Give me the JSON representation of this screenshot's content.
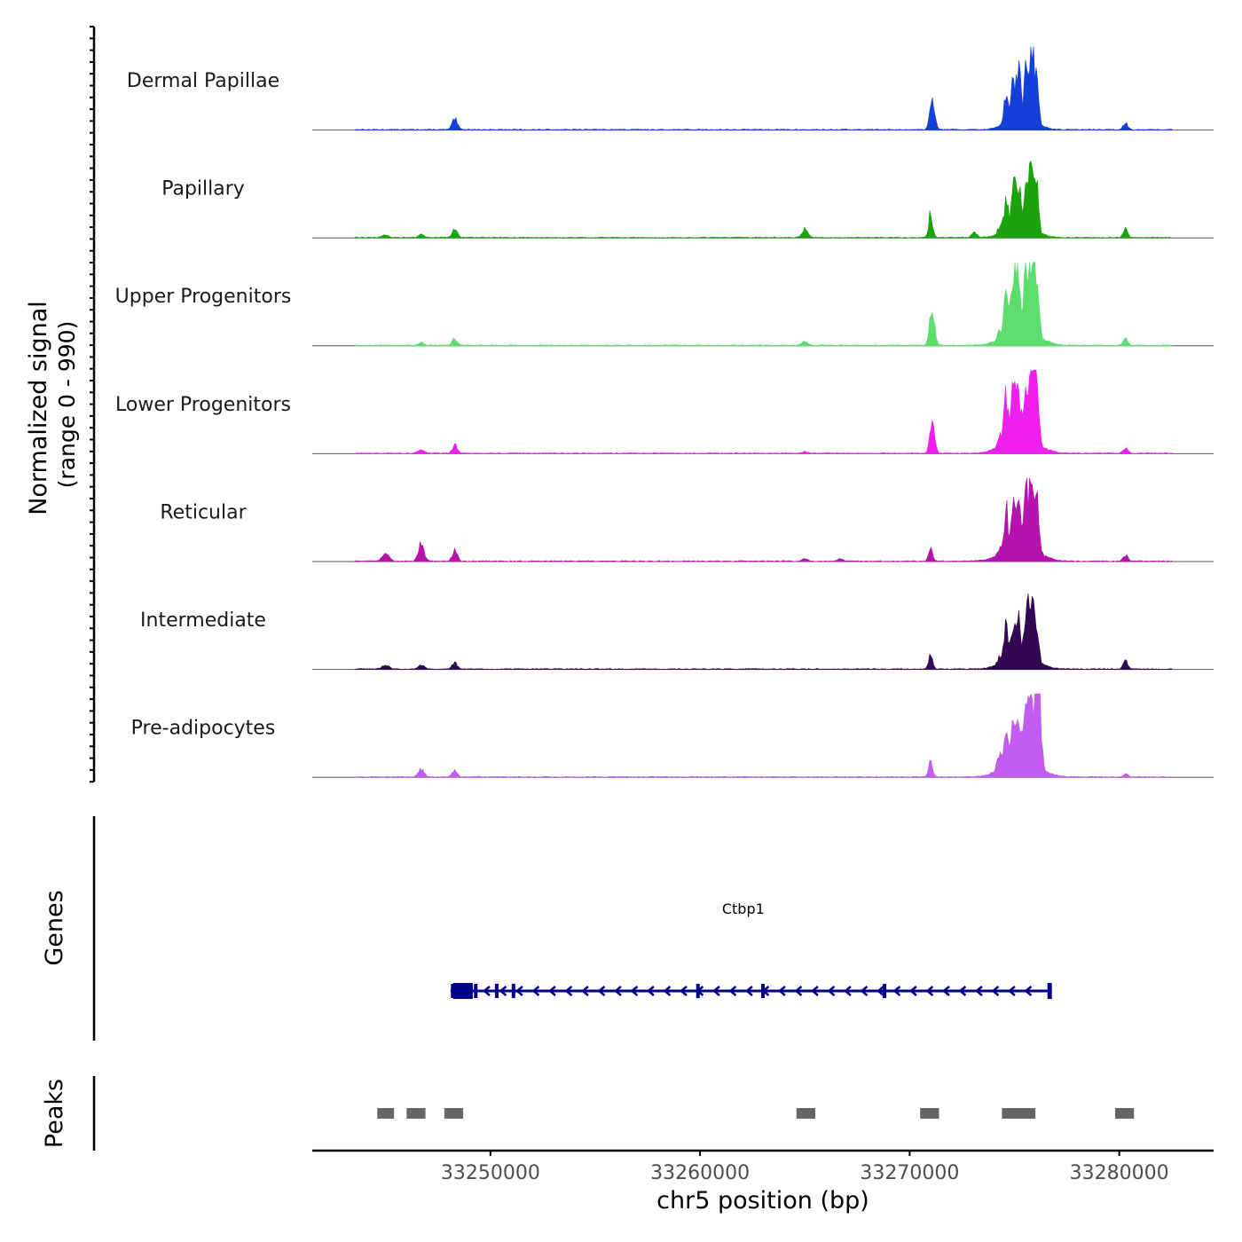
{
  "chart_data": {
    "type": "area",
    "genome": "chr5",
    "xlabel": "chr5 position (bp)",
    "x_range": [
      33241500,
      33284500
    ],
    "x_ticks": [
      33250000,
      33260000,
      33270000,
      33280000
    ],
    "x_tick_labels": [
      "33250000",
      "33260000",
      "33270000",
      "33280000"
    ],
    "signal_axis_label": "Normalized signal",
    "signal_axis_sublabel": "(range 0 - 990)",
    "signal_range": [
      0,
      990
    ],
    "tracks": [
      {
        "name": "Dermal Papillae",
        "color": "#1240d8",
        "peaks": [
          {
            "pos": 33248300,
            "h": 0.15,
            "w": 120
          },
          {
            "pos": 33271000,
            "h": 0.33,
            "w": 90
          },
          {
            "pos": 33271150,
            "h": 0.28,
            "w": 90
          },
          {
            "pos": 33274600,
            "h": 0.45,
            "w": 90
          },
          {
            "pos": 33274950,
            "h": 0.55,
            "w": 90
          },
          {
            "pos": 33275200,
            "h": 0.62,
            "w": 90
          },
          {
            "pos": 33275550,
            "h": 0.58,
            "w": 90
          },
          {
            "pos": 33275800,
            "h": 0.98,
            "w": 110
          },
          {
            "pos": 33276050,
            "h": 0.6,
            "w": 100
          },
          {
            "pos": 33275300,
            "h": 0.2,
            "w": 600
          },
          {
            "pos": 33280300,
            "h": 0.1,
            "w": 100
          }
        ]
      },
      {
        "name": "Papillary",
        "color": "#1aa30d",
        "peaks": [
          {
            "pos": 33245000,
            "h": 0.03,
            "w": 150
          },
          {
            "pos": 33246700,
            "h": 0.04,
            "w": 120
          },
          {
            "pos": 33248300,
            "h": 0.12,
            "w": 110
          },
          {
            "pos": 33265000,
            "h": 0.12,
            "w": 130
          },
          {
            "pos": 33271000,
            "h": 0.35,
            "w": 90
          },
          {
            "pos": 33273100,
            "h": 0.07,
            "w": 120
          },
          {
            "pos": 33274300,
            "h": 0.1,
            "w": 120
          },
          {
            "pos": 33274600,
            "h": 0.45,
            "w": 90
          },
          {
            "pos": 33274950,
            "h": 0.55,
            "w": 90
          },
          {
            "pos": 33275200,
            "h": 0.62,
            "w": 90
          },
          {
            "pos": 33275550,
            "h": 0.58,
            "w": 90
          },
          {
            "pos": 33275800,
            "h": 0.98,
            "w": 110
          },
          {
            "pos": 33276050,
            "h": 0.6,
            "w": 100
          },
          {
            "pos": 33275300,
            "h": 0.2,
            "w": 600
          },
          {
            "pos": 33280300,
            "h": 0.12,
            "w": 100
          }
        ]
      },
      {
        "name": "Upper Progenitors",
        "color": "#5ddd6b",
        "peaks": [
          {
            "pos": 33246700,
            "h": 0.04,
            "w": 110
          },
          {
            "pos": 33248300,
            "h": 0.1,
            "w": 110
          },
          {
            "pos": 33265000,
            "h": 0.06,
            "w": 120
          },
          {
            "pos": 33271000,
            "h": 0.37,
            "w": 90
          },
          {
            "pos": 33271150,
            "h": 0.3,
            "w": 90
          },
          {
            "pos": 33274300,
            "h": 0.1,
            "w": 120
          },
          {
            "pos": 33274600,
            "h": 0.75,
            "w": 90
          },
          {
            "pos": 33274950,
            "h": 0.8,
            "w": 90
          },
          {
            "pos": 33275200,
            "h": 0.65,
            "w": 90
          },
          {
            "pos": 33275550,
            "h": 0.8,
            "w": 90
          },
          {
            "pos": 33275800,
            "h": 0.98,
            "w": 110
          },
          {
            "pos": 33276050,
            "h": 0.85,
            "w": 100
          },
          {
            "pos": 33275300,
            "h": 0.3,
            "w": 700
          },
          {
            "pos": 33280300,
            "h": 0.1,
            "w": 100
          }
        ]
      },
      {
        "name": "Lower Progenitors",
        "color": "#f01ff0",
        "peaks": [
          {
            "pos": 33246700,
            "h": 0.04,
            "w": 150
          },
          {
            "pos": 33248300,
            "h": 0.14,
            "w": 110
          },
          {
            "pos": 33265000,
            "h": 0.02,
            "w": 110
          },
          {
            "pos": 33271000,
            "h": 0.3,
            "w": 90
          },
          {
            "pos": 33271150,
            "h": 0.25,
            "w": 90
          },
          {
            "pos": 33274300,
            "h": 0.12,
            "w": 120
          },
          {
            "pos": 33274600,
            "h": 0.65,
            "w": 90
          },
          {
            "pos": 33274950,
            "h": 0.7,
            "w": 90
          },
          {
            "pos": 33275200,
            "h": 0.55,
            "w": 90
          },
          {
            "pos": 33275550,
            "h": 0.7,
            "w": 90
          },
          {
            "pos": 33275800,
            "h": 0.98,
            "w": 110
          },
          {
            "pos": 33276050,
            "h": 0.8,
            "w": 100
          },
          {
            "pos": 33275300,
            "h": 0.3,
            "w": 700
          },
          {
            "pos": 33280300,
            "h": 0.08,
            "w": 100
          }
        ]
      },
      {
        "name": "Reticular",
        "color": "#b414ad",
        "peaks": [
          {
            "pos": 33245000,
            "h": 0.12,
            "w": 150
          },
          {
            "pos": 33246700,
            "h": 0.25,
            "w": 130
          },
          {
            "pos": 33248300,
            "h": 0.18,
            "w": 110
          },
          {
            "pos": 33265000,
            "h": 0.03,
            "w": 110
          },
          {
            "pos": 33266700,
            "h": 0.03,
            "w": 110
          },
          {
            "pos": 33271000,
            "h": 0.22,
            "w": 90
          },
          {
            "pos": 33274300,
            "h": 0.08,
            "w": 120
          },
          {
            "pos": 33274600,
            "h": 0.55,
            "w": 90
          },
          {
            "pos": 33274950,
            "h": 0.5,
            "w": 90
          },
          {
            "pos": 33275200,
            "h": 0.45,
            "w": 90
          },
          {
            "pos": 33275550,
            "h": 0.6,
            "w": 90
          },
          {
            "pos": 33275800,
            "h": 0.88,
            "w": 110
          },
          {
            "pos": 33276050,
            "h": 0.7,
            "w": 100
          },
          {
            "pos": 33275300,
            "h": 0.3,
            "w": 700
          },
          {
            "pos": 33280300,
            "h": 0.09,
            "w": 100
          }
        ]
      },
      {
        "name": "Intermediate",
        "color": "#340752",
        "peaks": [
          {
            "pos": 33245000,
            "h": 0.06,
            "w": 150
          },
          {
            "pos": 33246700,
            "h": 0.06,
            "w": 120
          },
          {
            "pos": 33248300,
            "h": 0.1,
            "w": 110
          },
          {
            "pos": 33271000,
            "h": 0.2,
            "w": 90
          },
          {
            "pos": 33274300,
            "h": 0.1,
            "w": 120
          },
          {
            "pos": 33274600,
            "h": 0.45,
            "w": 90
          },
          {
            "pos": 33274950,
            "h": 0.5,
            "w": 90
          },
          {
            "pos": 33275200,
            "h": 0.45,
            "w": 90
          },
          {
            "pos": 33275550,
            "h": 0.55,
            "w": 90
          },
          {
            "pos": 33275800,
            "h": 0.9,
            "w": 110
          },
          {
            "pos": 33276050,
            "h": 0.5,
            "w": 100
          },
          {
            "pos": 33275300,
            "h": 0.2,
            "w": 700
          },
          {
            "pos": 33280300,
            "h": 0.12,
            "w": 100
          }
        ]
      },
      {
        "name": "Pre-adipocytes",
        "color": "#c35cf0",
        "peaks": [
          {
            "pos": 33246700,
            "h": 0.12,
            "w": 130
          },
          {
            "pos": 33248300,
            "h": 0.1,
            "w": 110
          },
          {
            "pos": 33271000,
            "h": 0.25,
            "w": 90
          },
          {
            "pos": 33274300,
            "h": 0.15,
            "w": 140
          },
          {
            "pos": 33274600,
            "h": 0.35,
            "w": 90
          },
          {
            "pos": 33274950,
            "h": 0.45,
            "w": 90
          },
          {
            "pos": 33275200,
            "h": 0.5,
            "w": 90
          },
          {
            "pos": 33275550,
            "h": 0.55,
            "w": 90
          },
          {
            "pos": 33275800,
            "h": 0.78,
            "w": 110
          },
          {
            "pos": 33276050,
            "h": 0.98,
            "w": 100
          },
          {
            "pos": 33276200,
            "h": 0.7,
            "w": 100
          },
          {
            "pos": 33275300,
            "h": 0.35,
            "w": 700
          },
          {
            "pos": 33280300,
            "h": 0.04,
            "w": 100
          }
        ]
      }
    ],
    "genes_panel_label": "Genes",
    "genes": [
      {
        "name": "Ctbp1",
        "strand": "-",
        "start": 33248100,
        "end": 33276700,
        "color": "#00008b",
        "exons": [
          33248200,
          33248500,
          33248900,
          33249300,
          33250300,
          33251100,
          33259900,
          33263000,
          33268800
        ]
      }
    ],
    "peaks_panel_label": "Peaks",
    "peak_regions": [
      [
        33244600,
        33245400
      ],
      [
        33246000,
        33246900
      ],
      [
        33247800,
        33248700
      ],
      [
        33264600,
        33265500
      ],
      [
        33270500,
        33271400
      ],
      [
        33274400,
        33275000
      ],
      [
        33275000,
        33276000
      ],
      [
        33279800,
        33280700
      ]
    ],
    "peak_color": "#666666"
  }
}
